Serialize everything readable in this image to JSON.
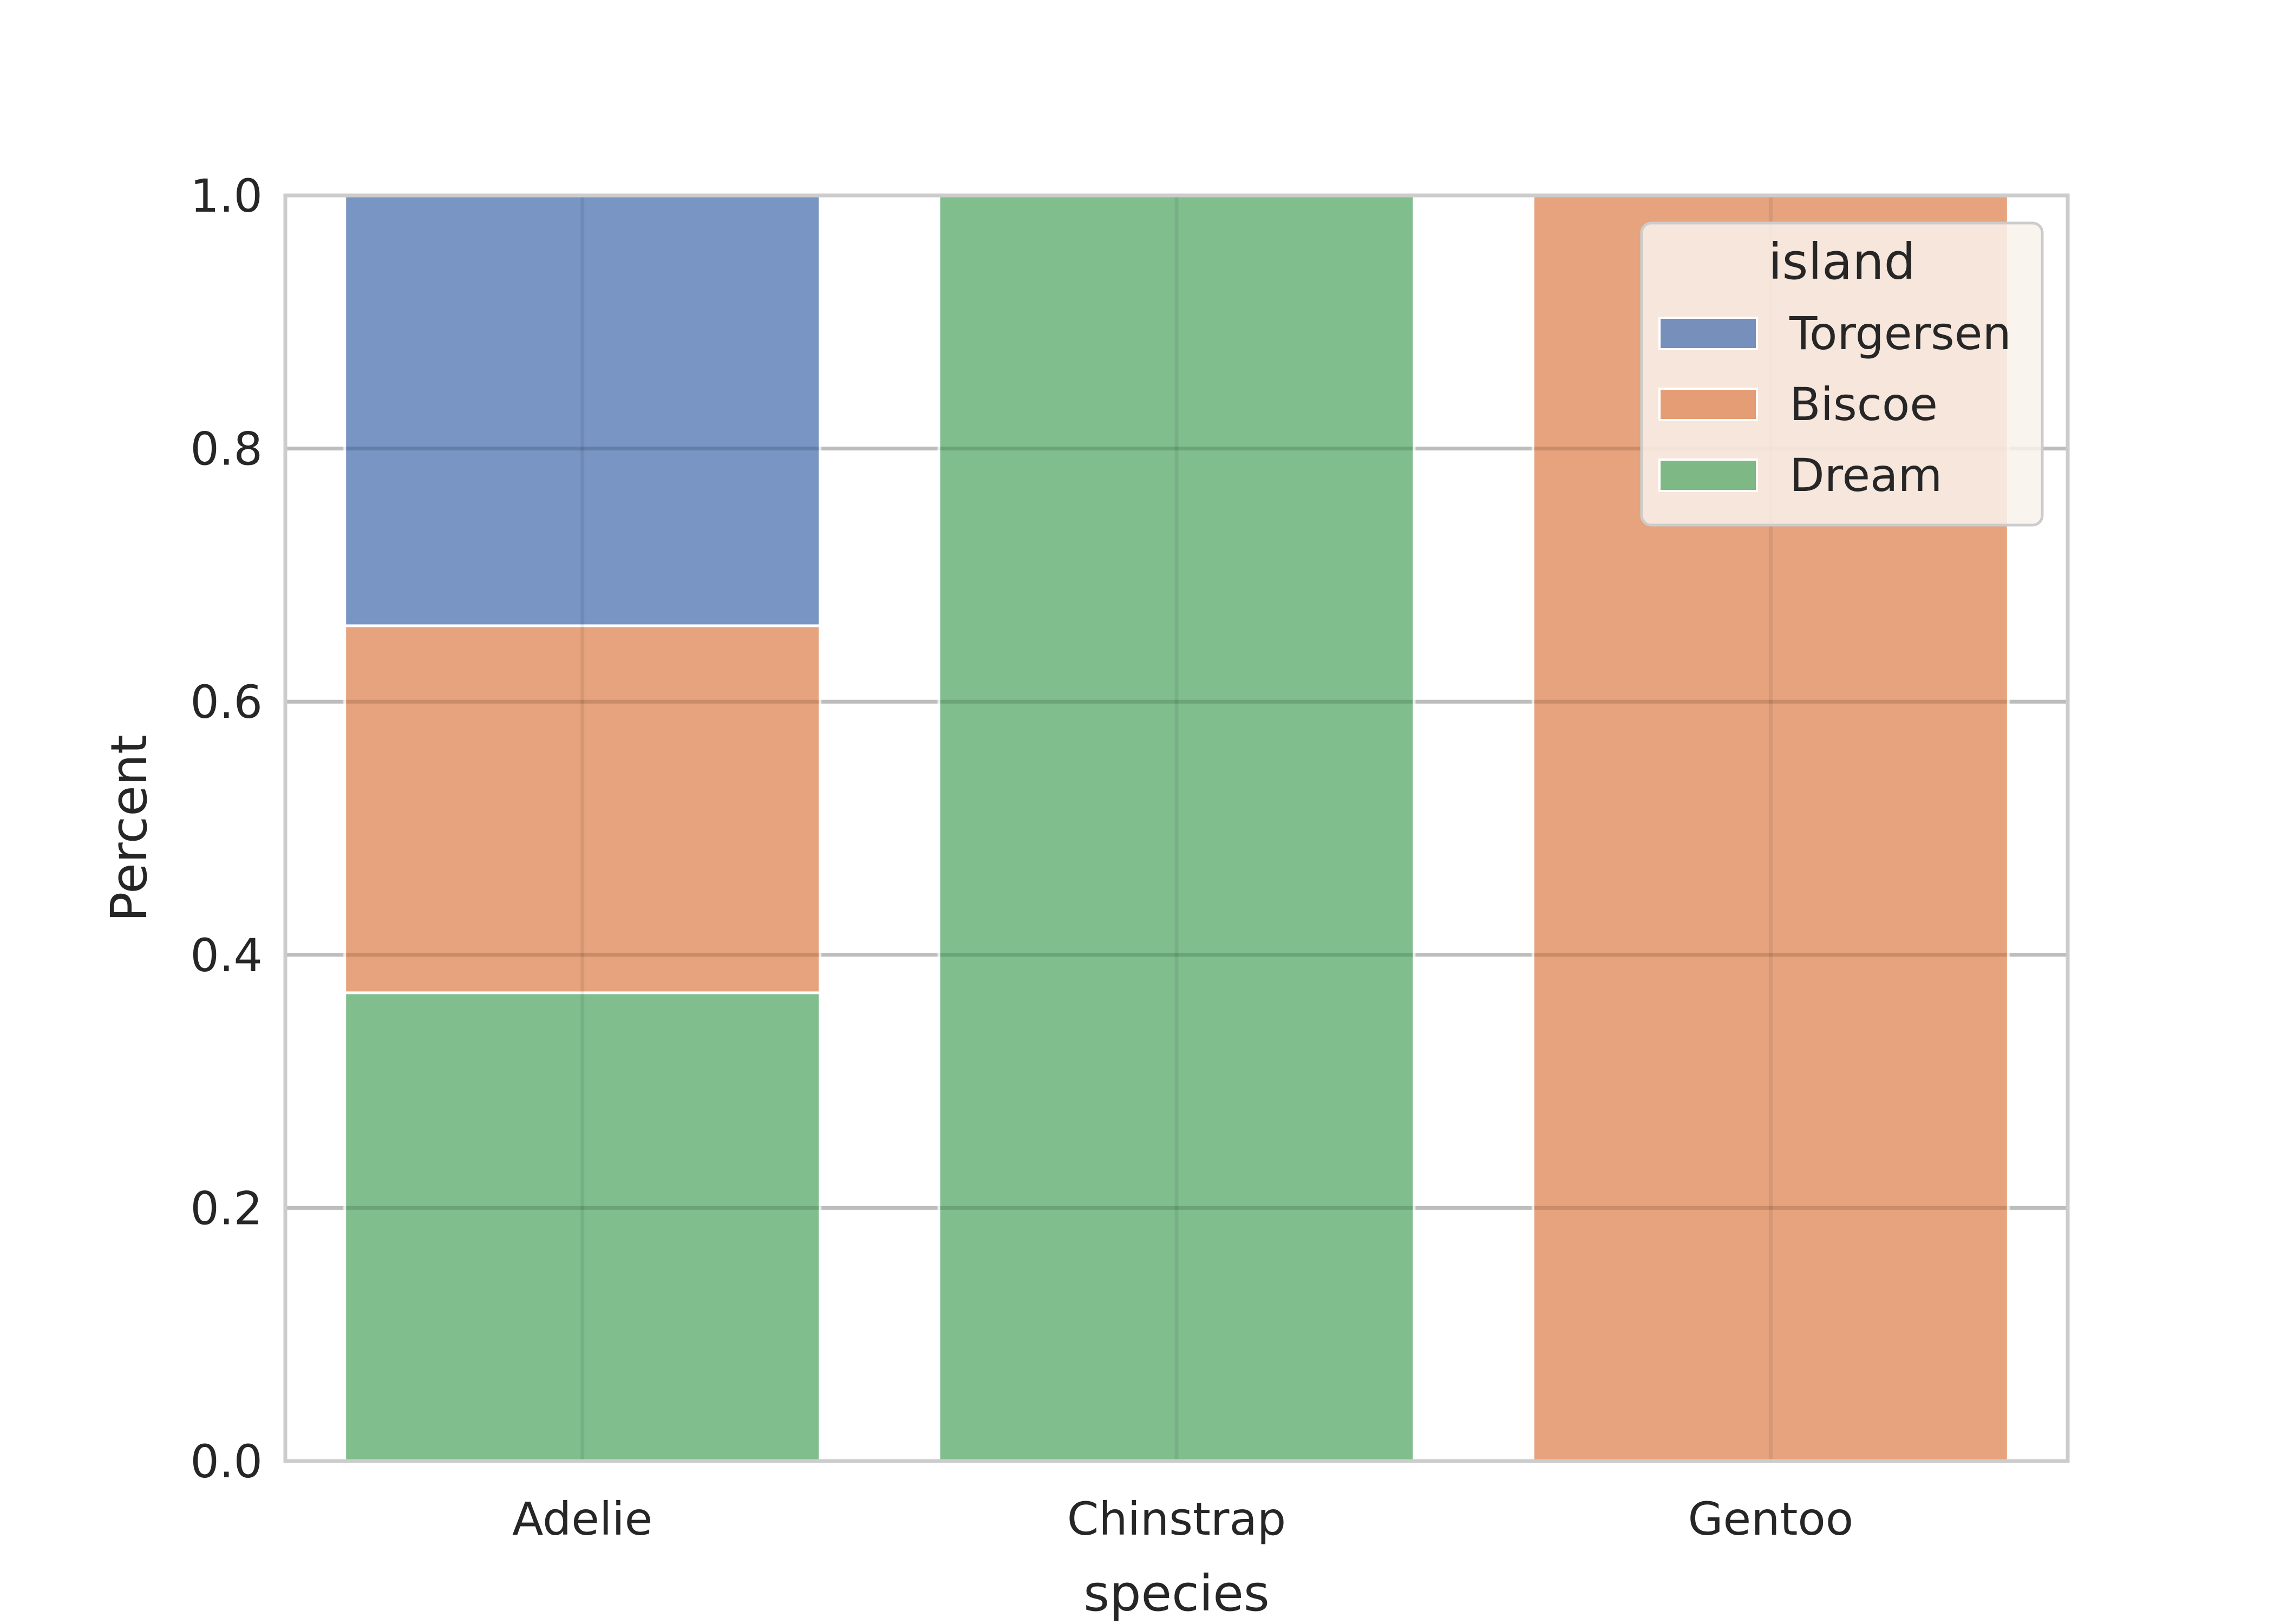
{
  "chart_data": {
    "type": "bar",
    "stacked": true,
    "normalized": true,
    "categories": [
      "Adelie",
      "Chinstrap",
      "Gentoo"
    ],
    "series": [
      {
        "name": "Torgersen",
        "color": "#4c72b0",
        "values": [
          0.34,
          0.0,
          0.0
        ]
      },
      {
        "name": "Biscoe",
        "color": "#dd8452",
        "values": [
          0.29,
          0.0,
          1.0
        ]
      },
      {
        "name": "Dream",
        "color": "#55a868",
        "values": [
          0.37,
          1.0,
          0.0
        ]
      }
    ],
    "stack_order": [
      "Dream",
      "Biscoe",
      "Torgersen"
    ],
    "title": "",
    "xlabel": "species",
    "ylabel": "Percent",
    "ylim": [
      0,
      1.0
    ],
    "yticks": [
      "0.0",
      "0.2",
      "0.4",
      "0.6",
      "0.8",
      "1.0"
    ],
    "grid": true,
    "legend": {
      "title": "island",
      "position": "upper right"
    }
  }
}
